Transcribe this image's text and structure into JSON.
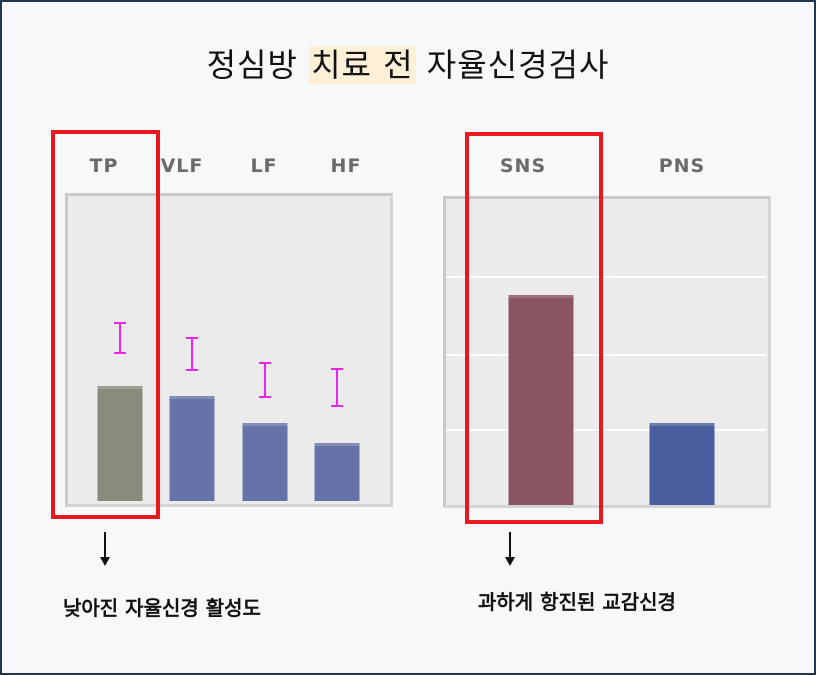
{
  "title": {
    "before": "정심방 ",
    "highlight": "치료 전",
    "after": " 자율신경검사"
  },
  "chart_data": [
    {
      "type": "bar",
      "categories": [
        "TP",
        "VLF",
        "LF",
        "HF"
      ],
      "values": [
        115,
        105,
        78,
        58
      ],
      "error_ranges": [
        [
          148,
          178
        ],
        [
          131,
          163
        ],
        [
          104,
          138
        ],
        [
          95,
          132
        ]
      ],
      "bar_colors": [
        "#8a8b7d",
        "#6673a9",
        "#6673a9",
        "#6673a9"
      ],
      "error_color": "#ee22ee",
      "ylim": [
        0,
        305
      ],
      "highlighted_category": "TP"
    },
    {
      "type": "bar",
      "categories": [
        "SNS",
        "PNS"
      ],
      "values": [
        210,
        82
      ],
      "bar_colors": [
        "#8b5462",
        "#4a5d9e"
      ],
      "gridlines": [
        75,
        150,
        228
      ],
      "ylim": [
        0,
        305
      ],
      "highlighted_category": "SNS"
    }
  ],
  "annotations": {
    "left_note": "낮아진 자율신경 활성도",
    "right_note": "과하게 항진된 교감신경"
  },
  "colors": {
    "highlight_box": "#e8181c",
    "title_highlight": "#fdf0d6",
    "frame_border": "#1f3552"
  }
}
